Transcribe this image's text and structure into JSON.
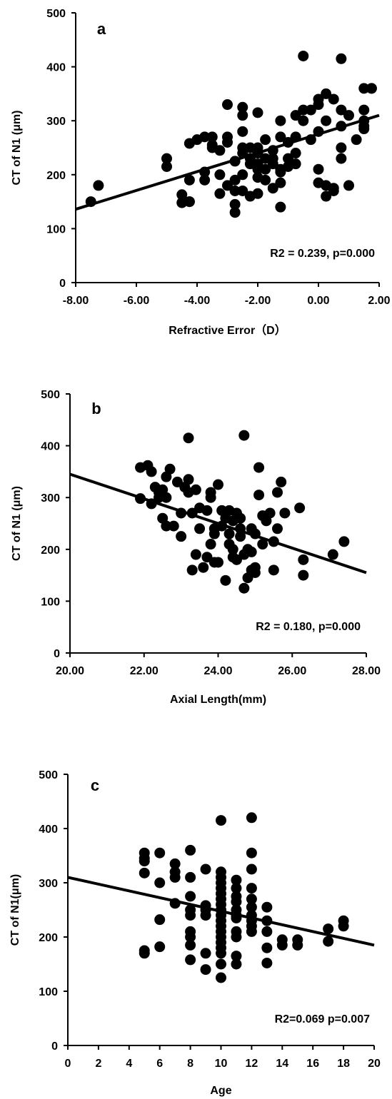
{
  "chart_data": [
    {
      "type": "scatter",
      "panel_label": "a",
      "xlabel": "Refractive Error（D）",
      "ylabel": "CT of N1 (μm)",
      "xlim": [
        -8,
        2
      ],
      "ylim": [
        0,
        500
      ],
      "x_ticks": [
        "-8.00",
        "-6.00",
        "-4.00",
        "-2.00",
        "0.00",
        "2.00"
      ],
      "y_ticks": [
        "0",
        "100",
        "200",
        "300",
        "400",
        "500"
      ],
      "annotation": "R2 = 0.239, p=0.000",
      "trendline": {
        "x": [
          -8,
          2
        ],
        "y": [
          136,
          310
        ]
      },
      "x": [
        -7.5,
        -7.25,
        -5,
        -5,
        -4.5,
        -4.5,
        -4.25,
        -4.25,
        -4.25,
        -4.25,
        -4.0,
        -3.75,
        -3.75,
        -3.75,
        -3.5,
        -3.5,
        -3.25,
        -3.25,
        -3.25,
        -3.0,
        -3.0,
        -3.0,
        -3.0,
        -2.75,
        -2.75,
        -2.75,
        -2.75,
        -2.5,
        -2.5,
        -2.5,
        -2.5,
        -2.5,
        -2.5,
        -2.5,
        -2.25,
        -2.25,
        -2.25,
        -2.25,
        -2.0,
        -2.0,
        -2.0,
        -2.0,
        -2.0,
        -2.0,
        -1.75,
        -1.75,
        -1.75,
        -1.75,
        -1.5,
        -1.5,
        -1.5,
        -1.25,
        -1.25,
        -1.25,
        -1.25,
        -1.25,
        -1.25,
        -1.0,
        -1.0,
        -1.0,
        -0.75,
        -0.75,
        -0.75,
        -0.5,
        -0.5,
        -0.5,
        -0.25,
        -0.25,
        0.0,
        0.0,
        0.0,
        0.0,
        0.0,
        0.25,
        0.25,
        0.25,
        0.5,
        0.5,
        0.5,
        0.75,
        0.75,
        0.75,
        0.75,
        0.75,
        1.0,
        1.0,
        1.25,
        1.5,
        1.5,
        1.5,
        1.5,
        1.5,
        1.75,
        1.75,
        -2.0,
        -1.5,
        -2.75,
        -3.5,
        -0.75,
        0.25
      ],
      "y": [
        150,
        180,
        230,
        215,
        163,
        148,
        258,
        190,
        150,
        150,
        265,
        270,
        205,
        190,
        270,
        255,
        200,
        165,
        245,
        330,
        270,
        180,
        260,
        145,
        130,
        170,
        225,
        325,
        310,
        280,
        250,
        240,
        200,
        170,
        230,
        220,
        250,
        160,
        315,
        250,
        240,
        210,
        195,
        165,
        265,
        230,
        210,
        190,
        245,
        220,
        175,
        300,
        270,
        210,
        205,
        185,
        140,
        260,
        230,
        215,
        310,
        270,
        240,
        420,
        320,
        300,
        265,
        320,
        340,
        330,
        280,
        210,
        185,
        350,
        300,
        160,
        340,
        175,
        170,
        415,
        320,
        290,
        250,
        230,
        310,
        180,
        265,
        360,
        320,
        300,
        290,
        285,
        360,
        360,
        220,
        230,
        190,
        250,
        220,
        180
      ]
    },
    {
      "type": "scatter",
      "panel_label": "b",
      "xlabel": "Axial Length(mm)",
      "ylabel": "CT of N1 (μm)",
      "xlim": [
        20,
        28
      ],
      "ylim": [
        0,
        500
      ],
      "x_ticks": [
        "20.00",
        "22.00",
        "24.00",
        "26.00",
        "28.00"
      ],
      "y_ticks": [
        "0",
        "100",
        "200",
        "300",
        "400",
        "500"
      ],
      "annotation": "R2 = 0.180, p=0.000",
      "trendline": {
        "x": [
          20,
          28
        ],
        "y": [
          345,
          155
        ]
      },
      "x": [
        21.9,
        21.9,
        22.1,
        22.2,
        22.2,
        22.3,
        22.4,
        22.5,
        22.5,
        22.6,
        22.6,
        22.6,
        22.7,
        22.8,
        22.9,
        23.0,
        23.0,
        23.1,
        23.2,
        23.2,
        23.3,
        23.3,
        23.4,
        23.4,
        23.5,
        23.5,
        23.6,
        23.7,
        23.7,
        23.8,
        23.8,
        23.8,
        23.9,
        23.9,
        24.0,
        24.0,
        24.1,
        24.1,
        24.2,
        24.2,
        24.3,
        24.3,
        24.4,
        24.4,
        24.4,
        24.5,
        24.5,
        24.6,
        24.6,
        24.7,
        24.7,
        24.8,
        24.8,
        24.9,
        24.9,
        24.9,
        25.0,
        25.0,
        25.1,
        25.1,
        25.2,
        25.2,
        25.3,
        25.4,
        25.5,
        25.5,
        25.6,
        25.6,
        25.7,
        25.8,
        26.2,
        26.3,
        26.3,
        27.1,
        27.4,
        23.2,
        24.7,
        22.4,
        24.6,
        23.9,
        24.3,
        25.0
      ],
      "y": [
        358,
        298,
        362,
        350,
        288,
        320,
        310,
        315,
        260,
        340,
        245,
        300,
        355,
        245,
        330,
        225,
        270,
        320,
        335,
        310,
        270,
        160,
        315,
        190,
        280,
        240,
        165,
        185,
        275,
        300,
        310,
        210,
        240,
        230,
        325,
        175,
        275,
        245,
        260,
        140,
        275,
        210,
        255,
        200,
        185,
        270,
        180,
        260,
        240,
        420,
        190,
        200,
        145,
        240,
        195,
        160,
        230,
        155,
        358,
        305,
        265,
        210,
        255,
        270,
        160,
        215,
        310,
        240,
        330,
        270,
        280,
        180,
        150,
        190,
        215,
        415,
        125,
        300,
        225,
        175,
        230,
        165
      ]
    },
    {
      "type": "scatter",
      "panel_label": "c",
      "xlabel": "Age",
      "ylabel": "CT of N1(μm)",
      "xlim": [
        0,
        20
      ],
      "ylim": [
        0,
        500
      ],
      "x_ticks": [
        "0",
        "2",
        "4",
        "6",
        "8",
        "10",
        "12",
        "14",
        "16",
        "18",
        "20"
      ],
      "y_ticks": [
        "0",
        "100",
        "200",
        "300",
        "400",
        "500"
      ],
      "annotation": "R2=0.069 p=0.007",
      "trendline": {
        "x": [
          0,
          20
        ],
        "y": [
          310,
          185
        ]
      },
      "x": [
        5,
        5,
        5,
        5,
        5,
        5,
        6,
        6,
        6,
        6,
        7,
        7,
        7,
        7,
        8,
        8,
        8,
        8,
        8,
        8,
        8,
        8,
        8,
        9,
        9,
        9,
        9,
        9,
        9,
        10,
        10,
        10,
        10,
        10,
        10,
        10,
        10,
        10,
        10,
        10,
        10,
        10,
        10,
        10,
        10,
        10,
        10,
        10,
        11,
        11,
        11,
        11,
        11,
        11,
        11,
        11,
        11,
        11,
        11,
        12,
        12,
        12,
        12,
        12,
        12,
        12,
        12,
        12,
        12,
        13,
        13,
        13,
        13,
        13,
        14,
        14,
        15,
        15,
        17,
        17,
        18,
        18
      ],
      "y": [
        355,
        345,
        340,
        318,
        175,
        170,
        355,
        300,
        232,
        182,
        335,
        320,
        310,
        262,
        360,
        310,
        275,
        250,
        240,
        210,
        200,
        185,
        158,
        325,
        258,
        250,
        240,
        170,
        140,
        415,
        320,
        310,
        300,
        290,
        280,
        270,
        260,
        250,
        240,
        230,
        220,
        210,
        200,
        190,
        180,
        170,
        150,
        125,
        305,
        290,
        275,
        265,
        250,
        235,
        210,
        200,
        165,
        150,
        240,
        420,
        355,
        325,
        290,
        270,
        255,
        240,
        230,
        220,
        210,
        255,
        230,
        210,
        180,
        152,
        195,
        185,
        195,
        185,
        215,
        192,
        230,
        220
      ]
    }
  ]
}
